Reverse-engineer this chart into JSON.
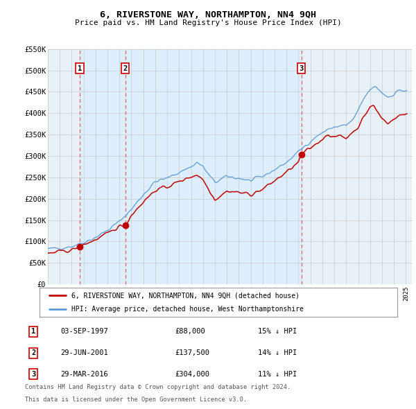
{
  "title": "6, RIVERSTONE WAY, NORTHAMPTON, NN4 9QH",
  "subtitle": "Price paid vs. HM Land Registry's House Price Index (HPI)",
  "legend_line1": "6, RIVERSTONE WAY, NORTHAMPTON, NN4 9QH (detached house)",
  "legend_line2": "HPI: Average price, detached house, West Northamptonshire",
  "transactions": [
    {
      "id": 1,
      "date": "03-SEP-1997",
      "price": 88000,
      "pct": "15%",
      "dir": "↓",
      "year": 1997.67
    },
    {
      "id": 2,
      "date": "29-JUN-2001",
      "price": 137500,
      "pct": "14%",
      "dir": "↓",
      "year": 2001.49
    },
    {
      "id": 3,
      "date": "29-MAR-2016",
      "price": 304000,
      "pct": "11%",
      "dir": "↓",
      "year": 2016.24
    }
  ],
  "hpi_color": "#5b9bd5",
  "paid_color": "#c00000",
  "dot_color": "#c00000",
  "vline_color": "#e06060",
  "shade_color": "#ddeeff",
  "grid_color": "#c8c8c8",
  "bg_chart": "#e8f0f8",
  "bg_figure": "#ffffff",
  "ylim": [
    0,
    550000
  ],
  "yticks": [
    0,
    50000,
    100000,
    150000,
    200000,
    250000,
    300000,
    350000,
    400000,
    450000,
    500000,
    550000
  ],
  "ytick_labels": [
    "£0",
    "£50K",
    "£100K",
    "£150K",
    "£200K",
    "£250K",
    "£300K",
    "£350K",
    "£400K",
    "£450K",
    "£500K",
    "£550K"
  ],
  "xlim_left": 1995.0,
  "xlim_right": 2025.5,
  "footnote1": "Contains HM Land Registry data © Crown copyright and database right 2024.",
  "footnote2": "This data is licensed under the Open Government Licence v3.0."
}
